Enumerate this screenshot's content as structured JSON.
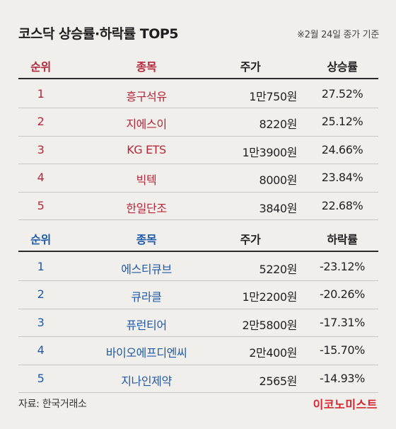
{
  "header": {
    "title": "코스닥 상승률·하락률 TOP5",
    "note": "※2월 24일 종가 기준"
  },
  "gainers": {
    "columns": {
      "rank": "순위",
      "name": "종목",
      "price": "주가",
      "rate": "상승률"
    },
    "rows": [
      {
        "rank": "1",
        "name": "흥구석유",
        "price": "1만750원",
        "rate": "27.52%"
      },
      {
        "rank": "2",
        "name": "지에스이",
        "price": "8220원",
        "rate": "25.12%"
      },
      {
        "rank": "3",
        "name": "KG ETS",
        "price": "1만3900원",
        "rate": "24.66%"
      },
      {
        "rank": "4",
        "name": "빅텍",
        "price": "8000원",
        "rate": "23.84%"
      },
      {
        "rank": "5",
        "name": "한일단조",
        "price": "3840원",
        "rate": "22.68%"
      }
    ]
  },
  "losers": {
    "columns": {
      "rank": "순위",
      "name": "종목",
      "price": "주가",
      "rate": "하락률"
    },
    "rows": [
      {
        "rank": "1",
        "name": "에스티큐브",
        "price": "5220원",
        "rate": "-23.12%"
      },
      {
        "rank": "2",
        "name": "큐라클",
        "price": "1만2200원",
        "rate": "-20.26%"
      },
      {
        "rank": "3",
        "name": "퓨런티어",
        "price": "2만5800원",
        "rate": "-17.31%"
      },
      {
        "rank": "4",
        "name": "바이오에프디엔씨",
        "price": "2만400원",
        "rate": "-15.70%"
      },
      {
        "rank": "5",
        "name": "지나인제약",
        "price": "2565원",
        "rate": "-14.93%"
      }
    ]
  },
  "footer": {
    "source": "자료: 한국거래소",
    "logo": "이코노미스트"
  },
  "colors": {
    "gain": "#b2283a",
    "loss": "#1f5aa8",
    "logo": "#d7262e"
  }
}
